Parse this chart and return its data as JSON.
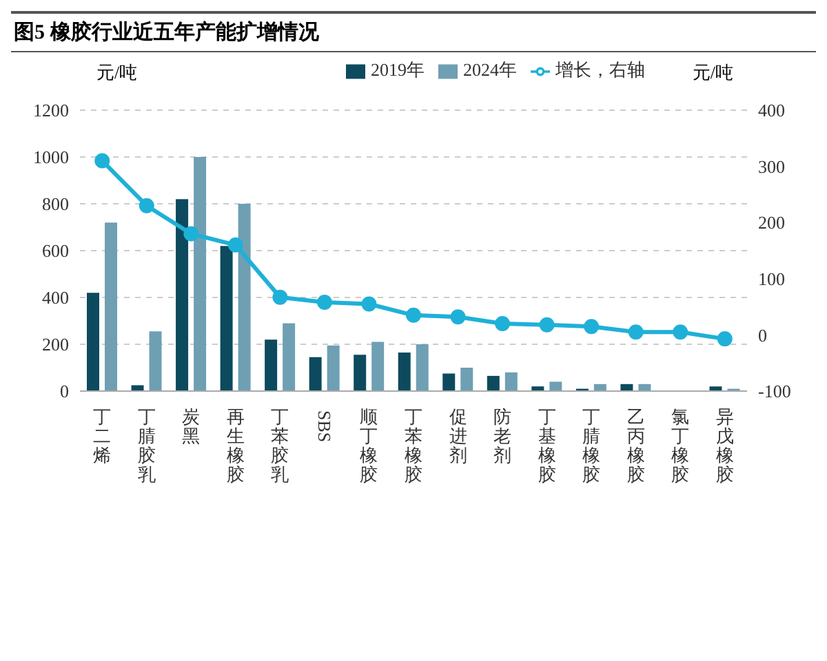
{
  "chart_data": {
    "type": "bar",
    "title": "图5 橡胶行业近五年产能扩增情况",
    "ylabel": "元/吨",
    "y2label": "元/吨",
    "categories": [
      "丁二烯",
      "丁腈胶乳",
      "炭黑",
      "再生橡胶",
      "丁苯胶乳",
      "SBS",
      "顺丁橡胶",
      "丁苯橡胶",
      "促进剂",
      "防老剂",
      "丁基橡胶",
      "丁腈橡胶",
      "乙丙橡胶",
      "氯丁橡胶",
      "异戊橡胶"
    ],
    "series": [
      {
        "name": "2019年",
        "color": "#0d4a5e",
        "values": [
          420,
          25,
          820,
          620,
          220,
          145,
          155,
          165,
          75,
          65,
          20,
          10,
          30,
          0,
          20
        ]
      },
      {
        "name": "2024年",
        "color": "#6f9fb3",
        "values": [
          720,
          255,
          1000,
          800,
          290,
          195,
          210,
          200,
          100,
          80,
          40,
          30,
          30,
          0,
          10
        ]
      },
      {
        "name": "增长，右轴",
        "type": "line",
        "axis": "y2",
        "color": "#1fb0d8",
        "values": [
          310,
          230,
          180,
          160,
          67,
          58,
          55,
          35,
          32,
          20,
          18,
          15,
          5,
          5,
          -7
        ]
      }
    ],
    "ylim": [
      0,
      1200
    ],
    "yticks": [
      0,
      200,
      400,
      600,
      800,
      1000,
      1200
    ],
    "y2lim": [
      -100,
      400
    ],
    "y2ticks": [
      -100,
      0,
      100,
      200,
      300,
      400
    ],
    "grid": "y",
    "legend": "top",
    "marker": "circle"
  }
}
